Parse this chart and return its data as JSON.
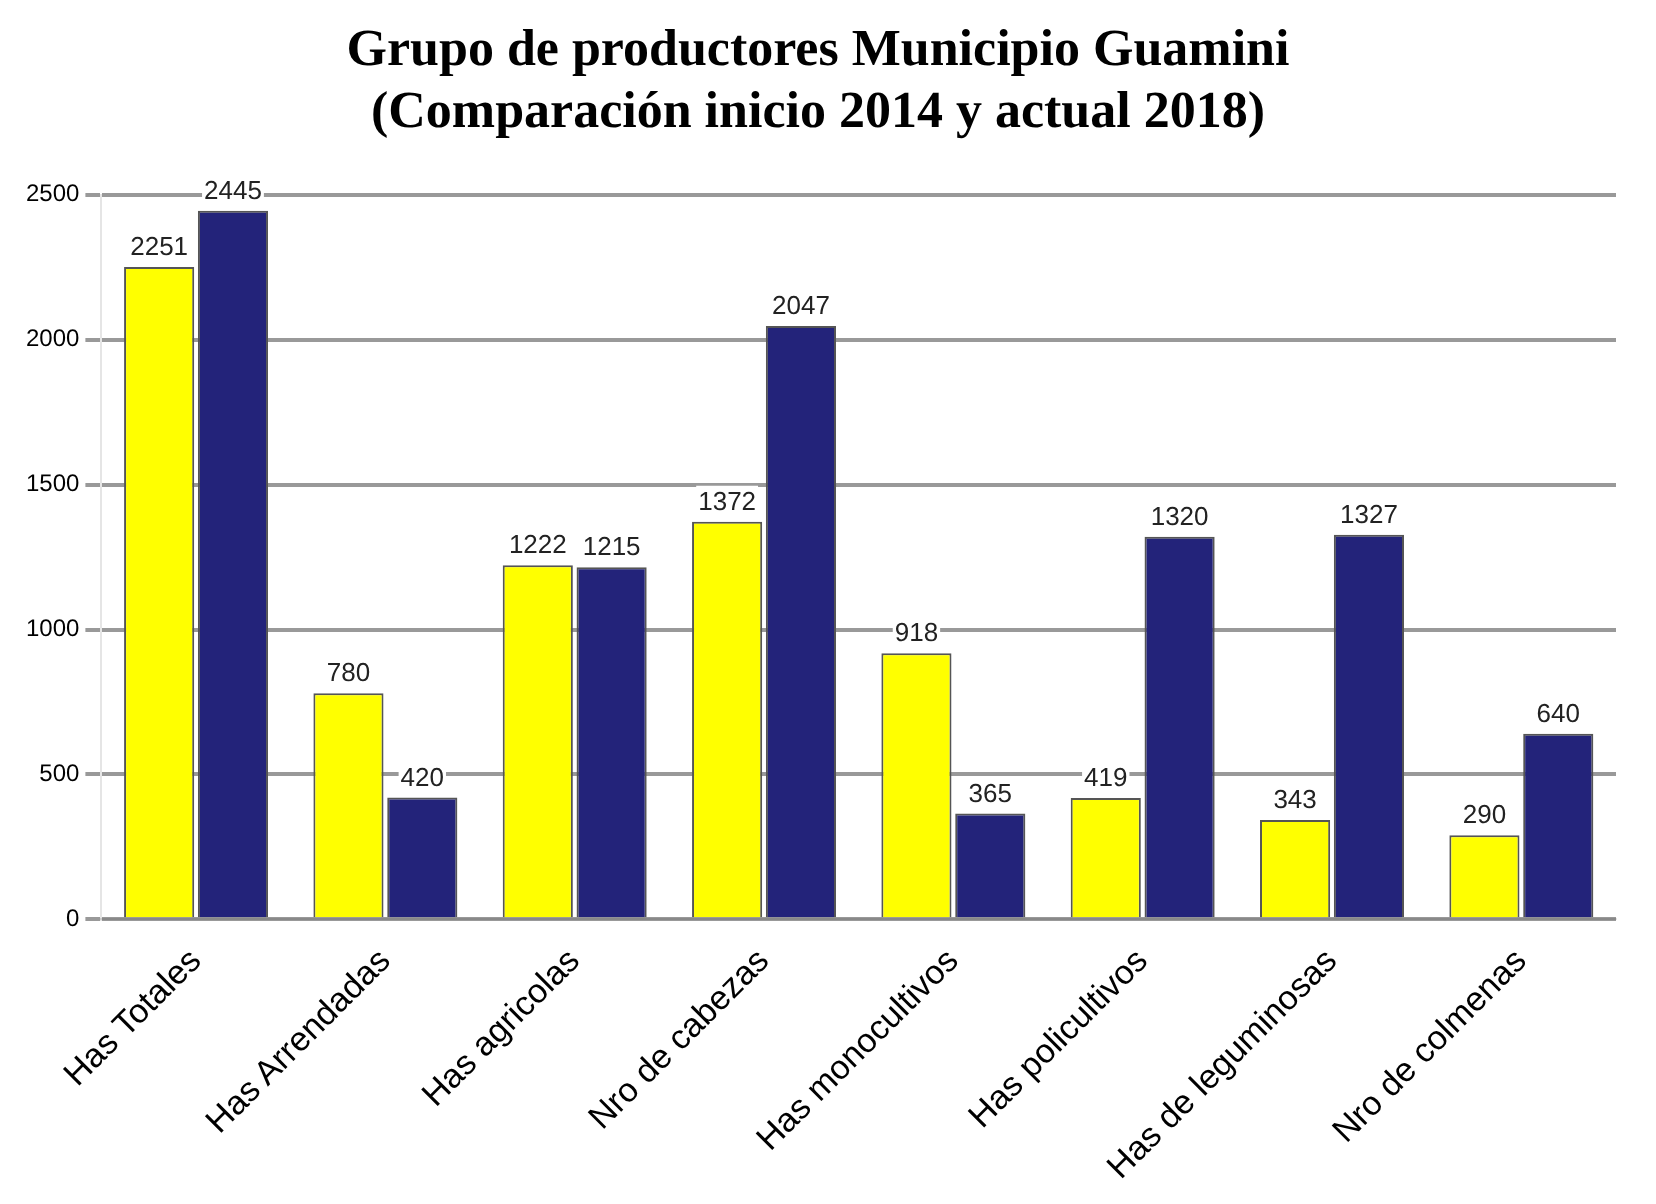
{
  "chart_data": {
    "type": "bar",
    "title": [
      "Grupo de productores Municipio Guamini",
      "(Comparación inicio 2014 y actual 2018)"
    ],
    "categories": [
      "Has Totales",
      "Has Arrendadas",
      "Has agricolas",
      "Nro de cabezas",
      "Has monocultivos",
      "Has policultivos",
      "Has de leguminosas",
      "Nro de colmenas"
    ],
    "series": [
      {
        "color": "#ffff00",
        "values": [
          2251,
          780,
          1222,
          1372,
          918,
          419,
          343,
          290
        ]
      },
      {
        "color": "#23237a",
        "values": [
          2445,
          420,
          1215,
          2047,
          365,
          1320,
          1327,
          640
        ]
      }
    ],
    "ylim": [
      0,
      2500
    ],
    "yticks": [
      0,
      500,
      1000,
      1500,
      2000,
      2500
    ],
    "grid": "y",
    "data_labels": true,
    "legend": false
  }
}
